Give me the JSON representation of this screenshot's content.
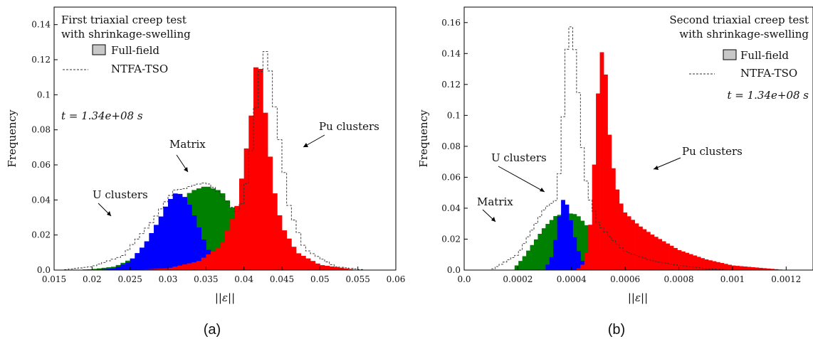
{
  "chart_data": [
    {
      "type": "histogram",
      "caption": "(a)",
      "xlabel": "||ε||",
      "ylabel": "Frequency",
      "xlim": [
        0.015,
        0.06
      ],
      "ylim": [
        0,
        0.15
      ],
      "xticks": [
        0.015,
        0.02,
        0.025,
        0.03,
        0.035,
        0.04,
        0.045,
        0.05,
        0.055,
        0.06
      ],
      "xtick_labels": [
        "0.015",
        "0.02",
        "0.025",
        "0.03",
        "0.035",
        "0.04",
        "0.045",
        "0.05",
        "0.055",
        "0.06"
      ],
      "yticks": [
        0,
        0.02,
        0.04,
        0.06,
        0.08,
        0.1,
        0.12,
        0.14
      ],
      "ytick_labels": [
        "0.0",
        "0.02",
        "0.04",
        "0.06",
        "0.08",
        "0.1",
        "0.12",
        "0.14"
      ],
      "title_lines": [
        "First triaxial creep test",
        "with shrinkage-swelling"
      ],
      "legend": [
        {
          "label": "Full-field",
          "style": "filled-box"
        },
        {
          "label": "NTFA-TSO",
          "style": "dashed"
        }
      ],
      "legend_position": "top-left",
      "time_label": "t = 1.34e+08 s",
      "annotations": [
        "Matrix",
        "U clusters",
        "Pu clusters"
      ],
      "series": [
        {
          "name": "Matrix",
          "color": "#008000",
          "x": [
            0.017,
            0.02,
            0.023,
            0.026,
            0.029,
            0.031,
            0.033,
            0.035,
            0.037,
            0.039,
            0.041,
            0.043,
            0.046,
            0.05
          ],
          "y": [
            0,
            0.0005,
            0.002,
            0.008,
            0.022,
            0.034,
            0.045,
            0.048,
            0.045,
            0.032,
            0.018,
            0.008,
            0.002,
            0
          ]
        },
        {
          "name": "U clusters",
          "color": "#0000ff",
          "x": [
            0.02,
            0.023,
            0.025,
            0.027,
            0.029,
            0.03,
            0.031,
            0.032,
            0.033,
            0.034,
            0.035,
            0.036,
            0.038,
            0.041
          ],
          "y": [
            0,
            0.001,
            0.005,
            0.015,
            0.03,
            0.039,
            0.044,
            0.043,
            0.036,
            0.025,
            0.014,
            0.006,
            0.001,
            0
          ]
        },
        {
          "name": "Pu clusters",
          "color": "#ff0000",
          "x": [
            0.025,
            0.03,
            0.034,
            0.037,
            0.039,
            0.04,
            0.041,
            0.0415,
            0.042,
            0.0425,
            0.043,
            0.044,
            0.045,
            0.047,
            0.05,
            0.055
          ],
          "y": [
            0,
            0.001,
            0.005,
            0.014,
            0.035,
            0.06,
            0.09,
            0.115,
            0.12,
            0.106,
            0.08,
            0.045,
            0.025,
            0.01,
            0.003,
            0
          ]
        },
        {
          "name": "NTFA-TSO",
          "color": "#333333",
          "dashed": true,
          "x": [
            0.016,
            0.02,
            0.024,
            0.028,
            0.03,
            0.031,
            0.032,
            0.033,
            0.034,
            0.035,
            0.036,
            0.037,
            0.038,
            0.039,
            0.04,
            0.041,
            0.042,
            0.043,
            0.044,
            0.046,
            0.048,
            0.052,
            0.056
          ],
          "y": [
            0,
            0.002,
            0.008,
            0.028,
            0.041,
            0.046,
            0.046,
            0.048,
            0.049,
            0.05,
            0.047,
            0.043,
            0.038,
            0.033,
            0.04,
            0.07,
            0.11,
            0.128,
            0.095,
            0.035,
            0.012,
            0.002,
            0
          ]
        }
      ]
    },
    {
      "type": "histogram",
      "caption": "(b)",
      "xlabel": "||ε||",
      "ylabel": "Frequency",
      "xlim": [
        0,
        0.0013
      ],
      "ylim": [
        0,
        0.17
      ],
      "xticks": [
        0,
        0.0002,
        0.0004,
        0.0006,
        0.0008,
        0.001,
        0.0012
      ],
      "xtick_labels": [
        "0.0",
        "0.0002",
        "0.0004",
        "0.0006",
        "0.0008",
        "0.001",
        "0.0012"
      ],
      "yticks": [
        0,
        0.02,
        0.04,
        0.06,
        0.08,
        0.1,
        0.12,
        0.14,
        0.16
      ],
      "ytick_labels": [
        "0.0",
        "0.02",
        "0.04",
        "0.06",
        "0.08",
        "0.1",
        "0.12",
        "0.14",
        "0.16"
      ],
      "title_lines": [
        "Second triaxial creep test",
        "with shrinkage-swelling"
      ],
      "legend": [
        {
          "label": "Full-field",
          "style": "filled-box"
        },
        {
          "label": "NTFA-TSO",
          "style": "dashed"
        }
      ],
      "legend_position": "top-right",
      "time_label": "t = 1.34e+08 s",
      "annotations": [
        "U clusters",
        "Pu clusters",
        "Matrix"
      ],
      "series": [
        {
          "name": "Matrix",
          "color": "#008000",
          "x": [
            0.00018,
            0.00022,
            0.00026,
            0.0003,
            0.00034,
            0.00038,
            0.00042,
            0.00046,
            0.0005,
            0.00054
          ],
          "y": [
            0,
            0.008,
            0.018,
            0.028,
            0.035,
            0.037,
            0.036,
            0.028,
            0.012,
            0
          ]
        },
        {
          "name": "U clusters",
          "color": "#0000ff",
          "x": [
            0.0003,
            0.00033,
            0.00035,
            0.00036,
            0.00037,
            0.00038,
            0.00039,
            0.0004,
            0.00042,
            0.00044,
            0.00046,
            0.0005
          ],
          "y": [
            0,
            0.01,
            0.03,
            0.042,
            0.046,
            0.044,
            0.038,
            0.03,
            0.015,
            0.006,
            0.002,
            0
          ]
        },
        {
          "name": "Pu clusters",
          "color": "#ff0000",
          "x": [
            0.00042,
            0.00045,
            0.00047,
            0.00049,
            0.0005,
            0.00051,
            0.00052,
            0.00053,
            0.00054,
            0.00056,
            0.00058,
            0.0006,
            0.00065,
            0.0007,
            0.0008,
            0.0009,
            0.001,
            0.0011,
            0.0012
          ],
          "y": [
            0,
            0.005,
            0.03,
            0.085,
            0.12,
            0.14,
            0.143,
            0.12,
            0.09,
            0.06,
            0.045,
            0.037,
            0.029,
            0.023,
            0.013,
            0.007,
            0.003,
            0.0015,
            0
          ]
        },
        {
          "name": "NTFA-TSO",
          "color": "#333333",
          "dashed": true,
          "x": [
            0.0001,
            0.0002,
            0.00025,
            0.0003,
            0.00034,
            0.00036,
            0.00038,
            0.0004,
            0.00042,
            0.00044,
            0.00046,
            0.00048,
            0.0005,
            0.00055,
            0.0006,
            0.0007,
            0.0008,
            0.0009,
            0.001
          ],
          "y": [
            0,
            0.01,
            0.025,
            0.04,
            0.045,
            0.07,
            0.14,
            0.16,
            0.13,
            0.08,
            0.05,
            0.04,
            0.03,
            0.02,
            0.012,
            0.006,
            0.003,
            0.001,
            0
          ]
        }
      ]
    }
  ]
}
